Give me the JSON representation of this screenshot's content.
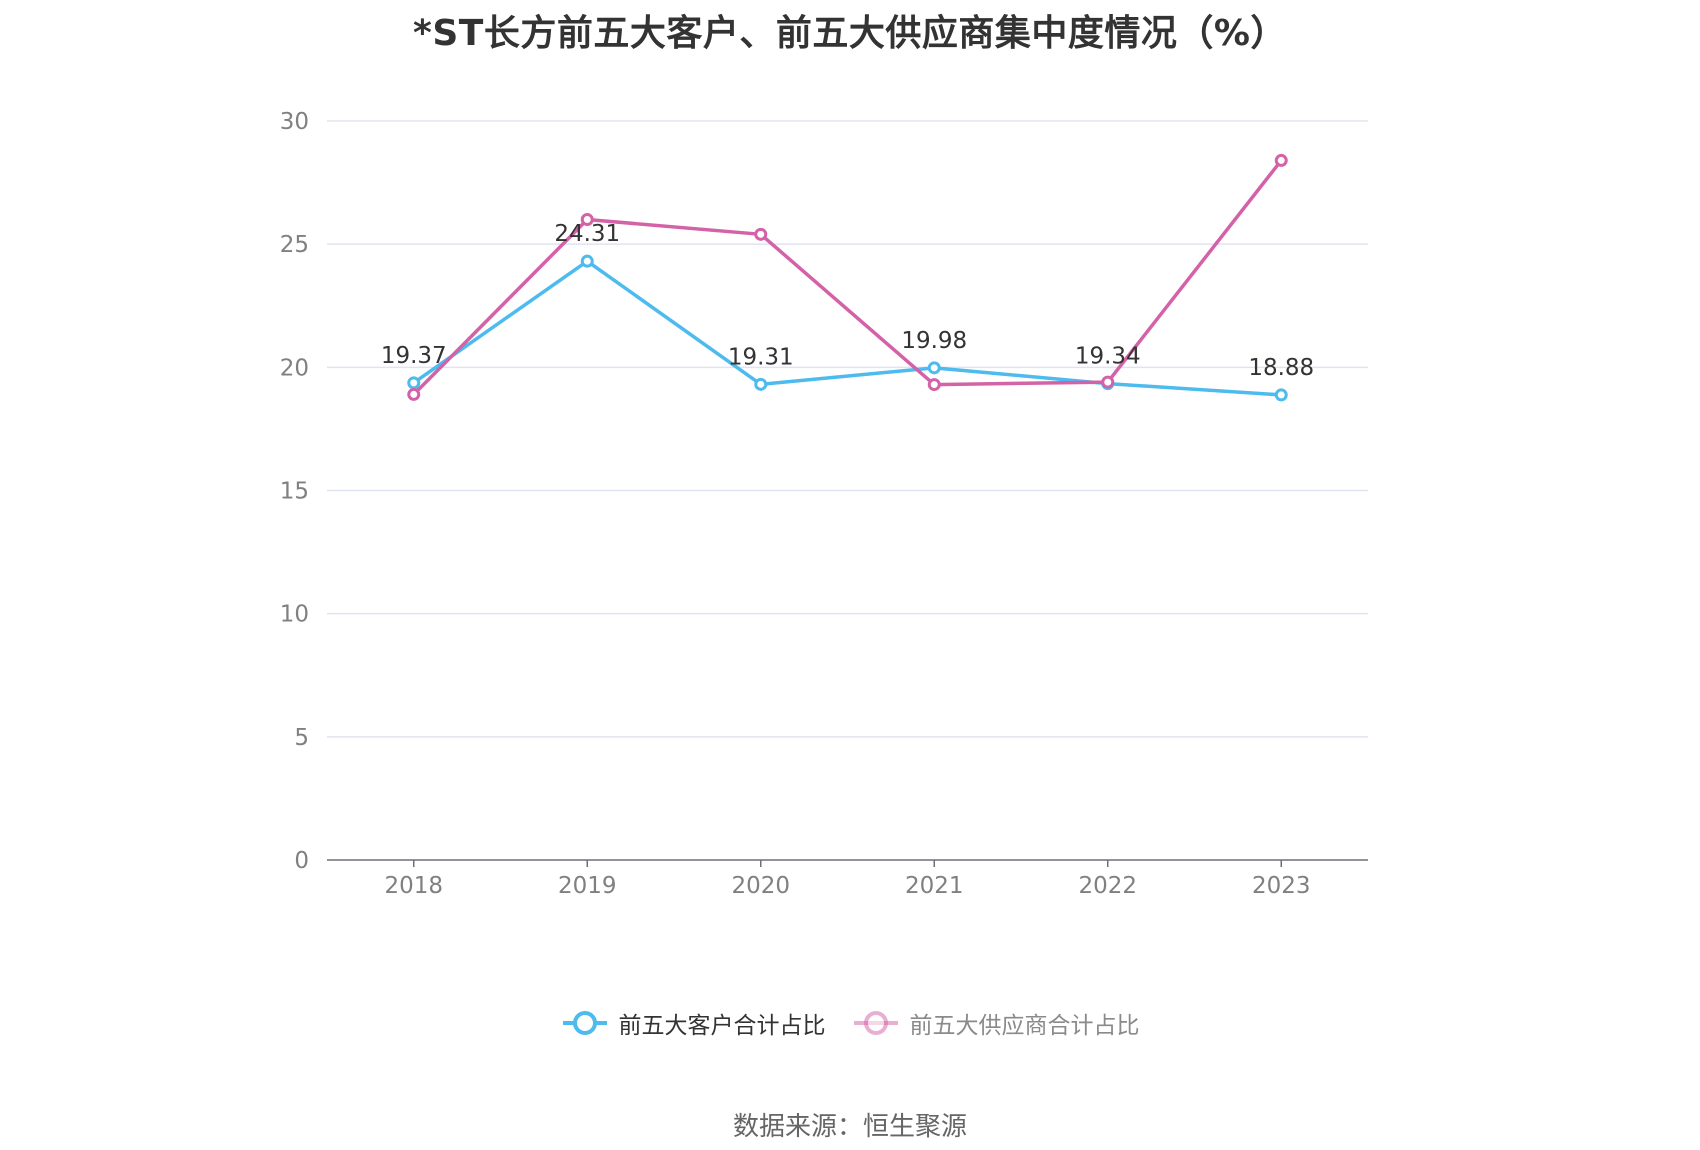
{
  "title": "*ST长方前五大客户、前五大供应商集中度情况（%）",
  "source": "数据来源：恒生聚源",
  "chart_data": {
    "type": "line",
    "title": "*ST长方前五大客户、前五大供应商集中度情况（%）",
    "x": [
      "2018",
      "2019",
      "2020",
      "2021",
      "2022",
      "2023"
    ],
    "ylim": [
      0,
      30
    ],
    "yticks": [
      0,
      5,
      10,
      15,
      20,
      25,
      30
    ],
    "grid": true,
    "legend_position": "bottom",
    "series": [
      {
        "name": "前五大客户合计占比",
        "color": "#4dbbee",
        "values": [
          19.37,
          24.31,
          19.31,
          19.98,
          19.34,
          18.88
        ],
        "labels": [
          "19.37",
          "24.31",
          "19.31",
          "19.98",
          "19.34",
          "18.88"
        ]
      },
      {
        "name": "前五大供应商合计占比",
        "color": "#d462a8",
        "values": [
          18.9,
          26.0,
          25.4,
          19.3,
          19.4,
          28.4
        ]
      }
    ]
  }
}
